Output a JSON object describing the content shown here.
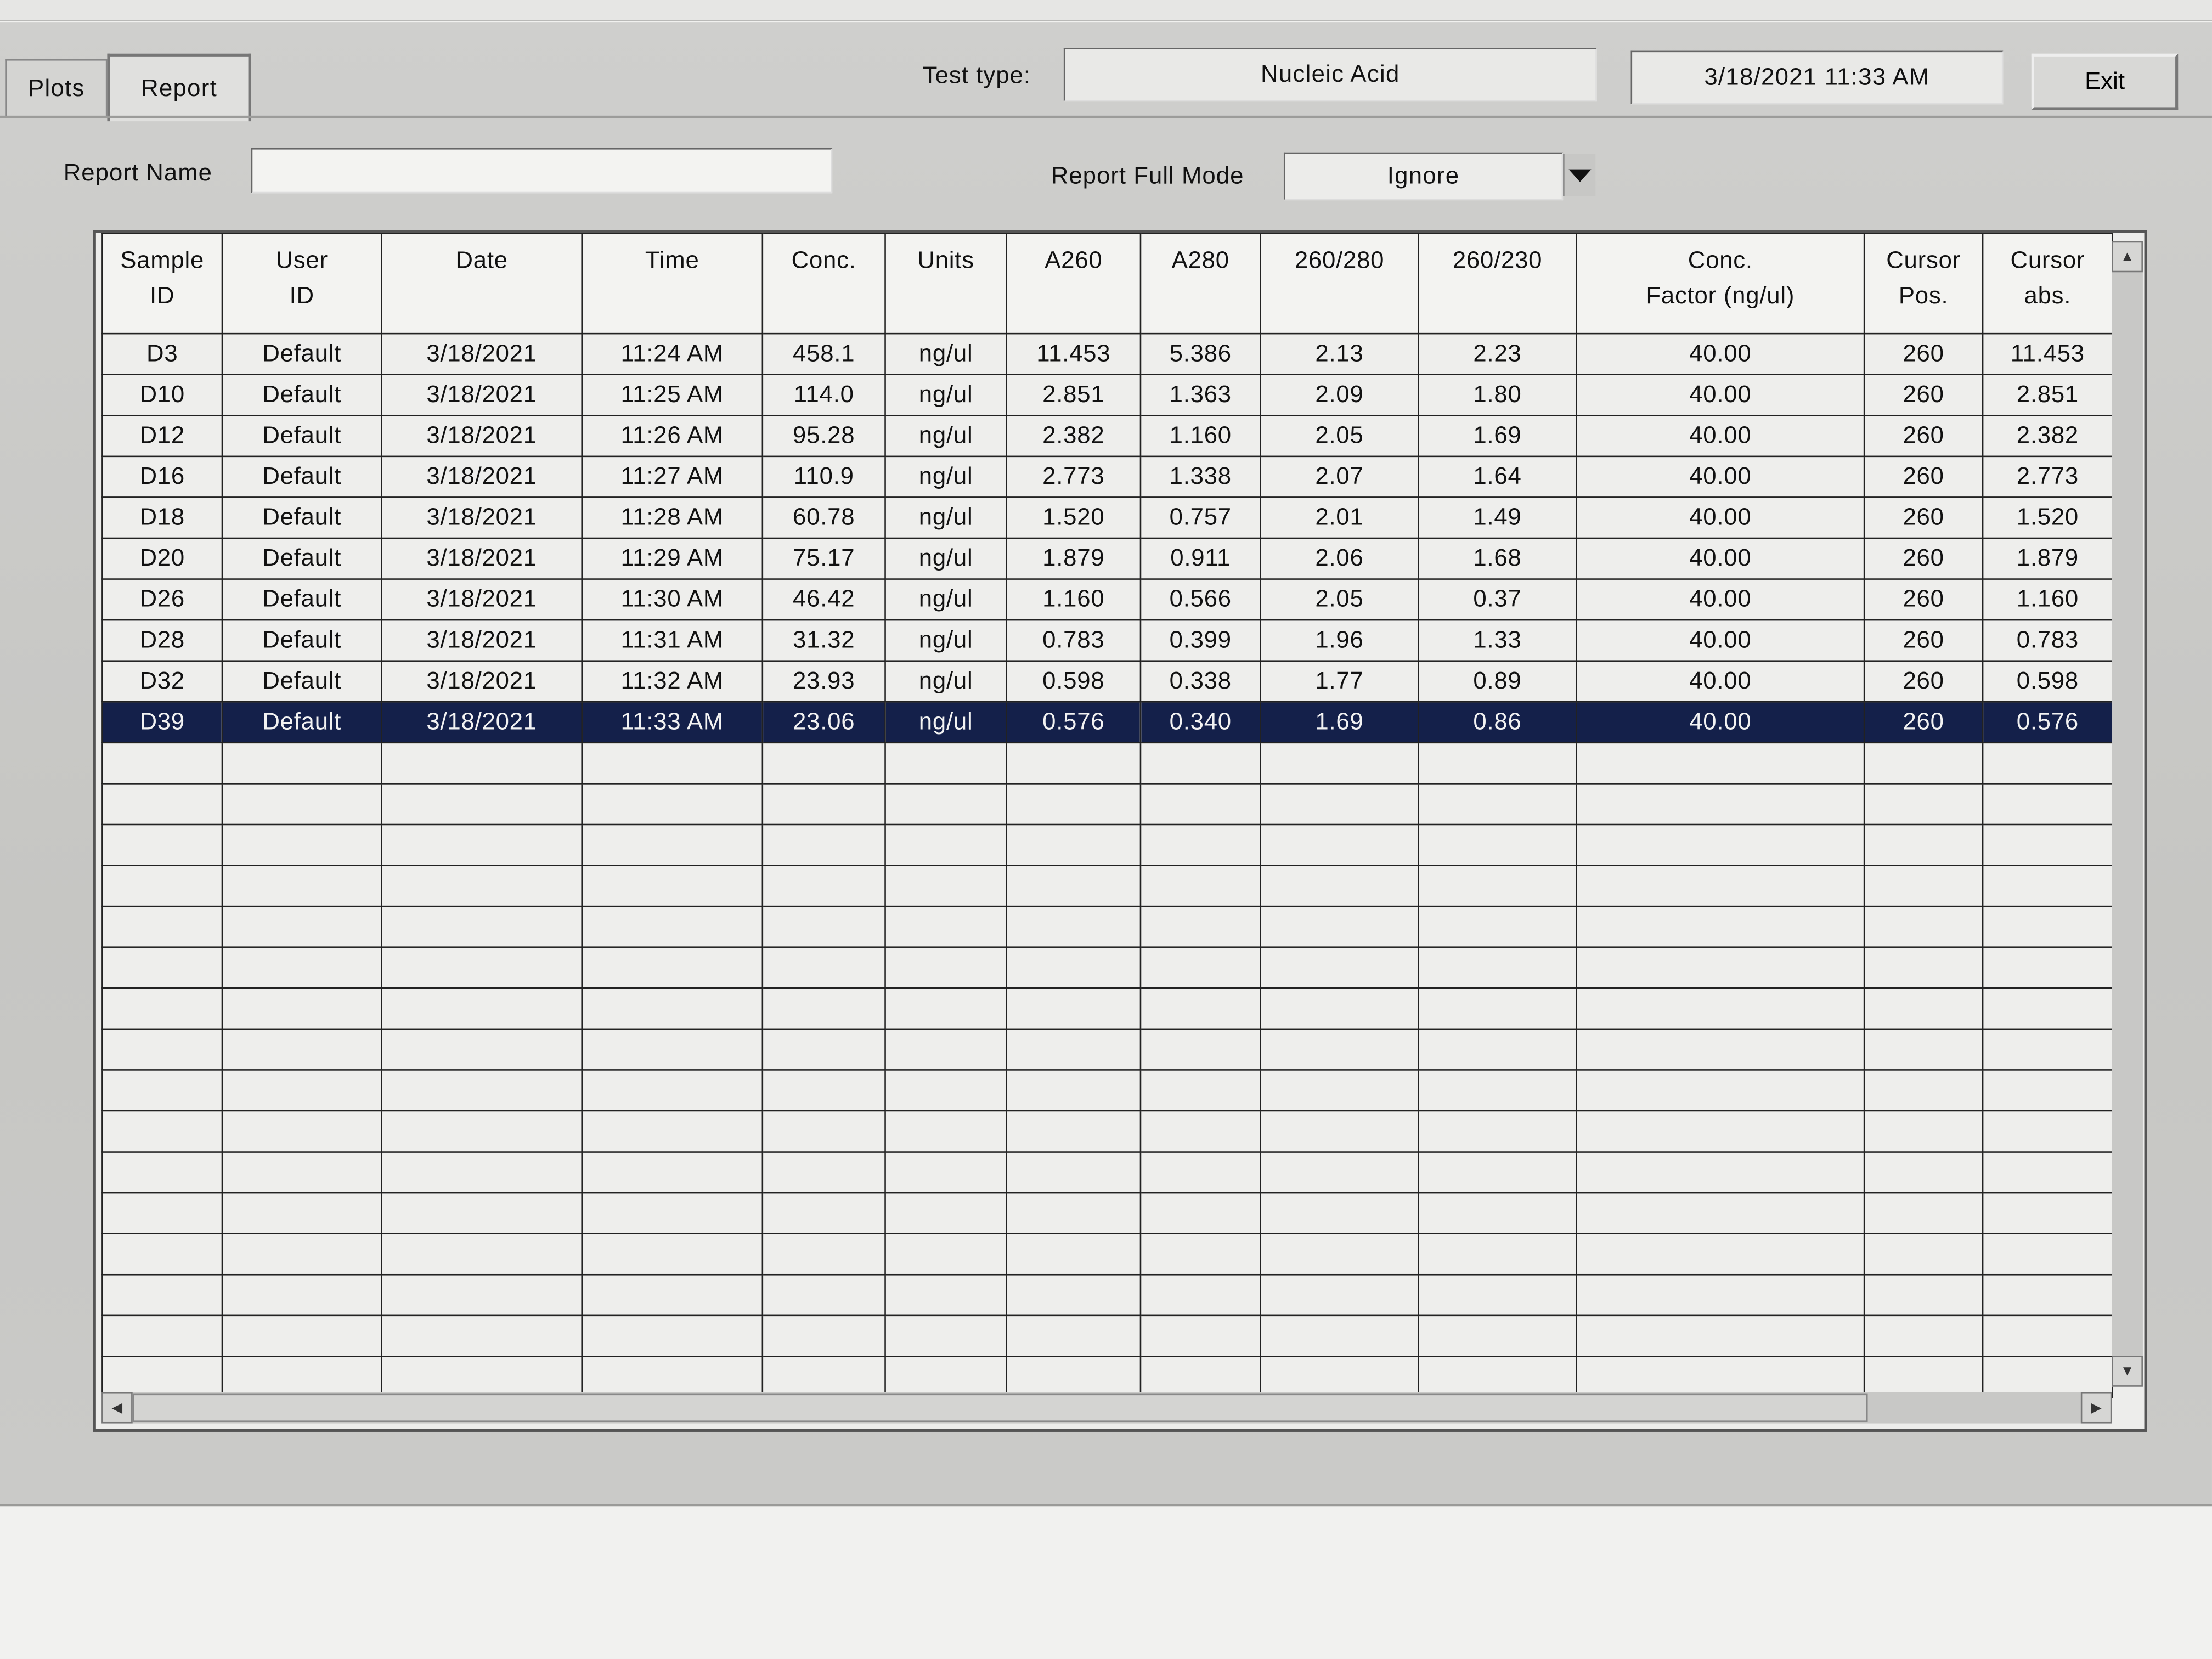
{
  "tabs": [
    {
      "label": "Plots"
    },
    {
      "label": "Report"
    }
  ],
  "header": {
    "test_type_label": "Test type:",
    "test_type_value": "Nucleic Acid",
    "datetime": "3/18/2021  11:33 AM",
    "exit_label": "Exit"
  },
  "report": {
    "name_label": "Report Name",
    "name_value": "",
    "full_mode_label": "Report Full Mode",
    "full_mode_value": "Ignore"
  },
  "table": {
    "columns": [
      [
        "Sample",
        "ID"
      ],
      [
        "User",
        "ID"
      ],
      [
        "Date",
        ""
      ],
      [
        "Time",
        ""
      ],
      [
        "Conc.",
        ""
      ],
      [
        "Units",
        ""
      ],
      [
        "A260",
        ""
      ],
      [
        "A280",
        ""
      ],
      [
        "260/280",
        ""
      ],
      [
        "260/230",
        ""
      ],
      [
        "Conc.",
        "Factor (ng/ul)"
      ],
      [
        "Cursor",
        "Pos."
      ],
      [
        "Cursor",
        "abs."
      ]
    ],
    "rows": [
      [
        "D3",
        "Default",
        "3/18/2021",
        "11:24 AM",
        "458.1",
        "ng/ul",
        "11.453",
        "5.386",
        "2.13",
        "2.23",
        "40.00",
        "260",
        "11.453"
      ],
      [
        "D10",
        "Default",
        "3/18/2021",
        "11:25 AM",
        "114.0",
        "ng/ul",
        "2.851",
        "1.363",
        "2.09",
        "1.80",
        "40.00",
        "260",
        "2.851"
      ],
      [
        "D12",
        "Default",
        "3/18/2021",
        "11:26 AM",
        "95.28",
        "ng/ul",
        "2.382",
        "1.160",
        "2.05",
        "1.69",
        "40.00",
        "260",
        "2.382"
      ],
      [
        "D16",
        "Default",
        "3/18/2021",
        "11:27 AM",
        "110.9",
        "ng/ul",
        "2.773",
        "1.338",
        "2.07",
        "1.64",
        "40.00",
        "260",
        "2.773"
      ],
      [
        "D18",
        "Default",
        "3/18/2021",
        "11:28 AM",
        "60.78",
        "ng/ul",
        "1.520",
        "0.757",
        "2.01",
        "1.49",
        "40.00",
        "260",
        "1.520"
      ],
      [
        "D20",
        "Default",
        "3/18/2021",
        "11:29 AM",
        "75.17",
        "ng/ul",
        "1.879",
        "0.911",
        "2.06",
        "1.68",
        "40.00",
        "260",
        "1.879"
      ],
      [
        "D26",
        "Default",
        "3/18/2021",
        "11:30 AM",
        "46.42",
        "ng/ul",
        "1.160",
        "0.566",
        "2.05",
        "0.37",
        "40.00",
        "260",
        "1.160"
      ],
      [
        "D28",
        "Default",
        "3/18/2021",
        "11:31 AM",
        "31.32",
        "ng/ul",
        "0.783",
        "0.399",
        "1.96",
        "1.33",
        "40.00",
        "260",
        "0.783"
      ],
      [
        "D32",
        "Default",
        "3/18/2021",
        "11:32 AM",
        "23.93",
        "ng/ul",
        "0.598",
        "0.338",
        "1.77",
        "0.89",
        "40.00",
        "260",
        "0.598"
      ],
      [
        "D39",
        "Default",
        "3/18/2021",
        "11:33 AM",
        "23.06",
        "ng/ul",
        "0.576",
        "0.340",
        "1.69",
        "0.86",
        "40.00",
        "260",
        "0.576"
      ]
    ],
    "selected_row": 9,
    "selection_color": "#14204a"
  }
}
